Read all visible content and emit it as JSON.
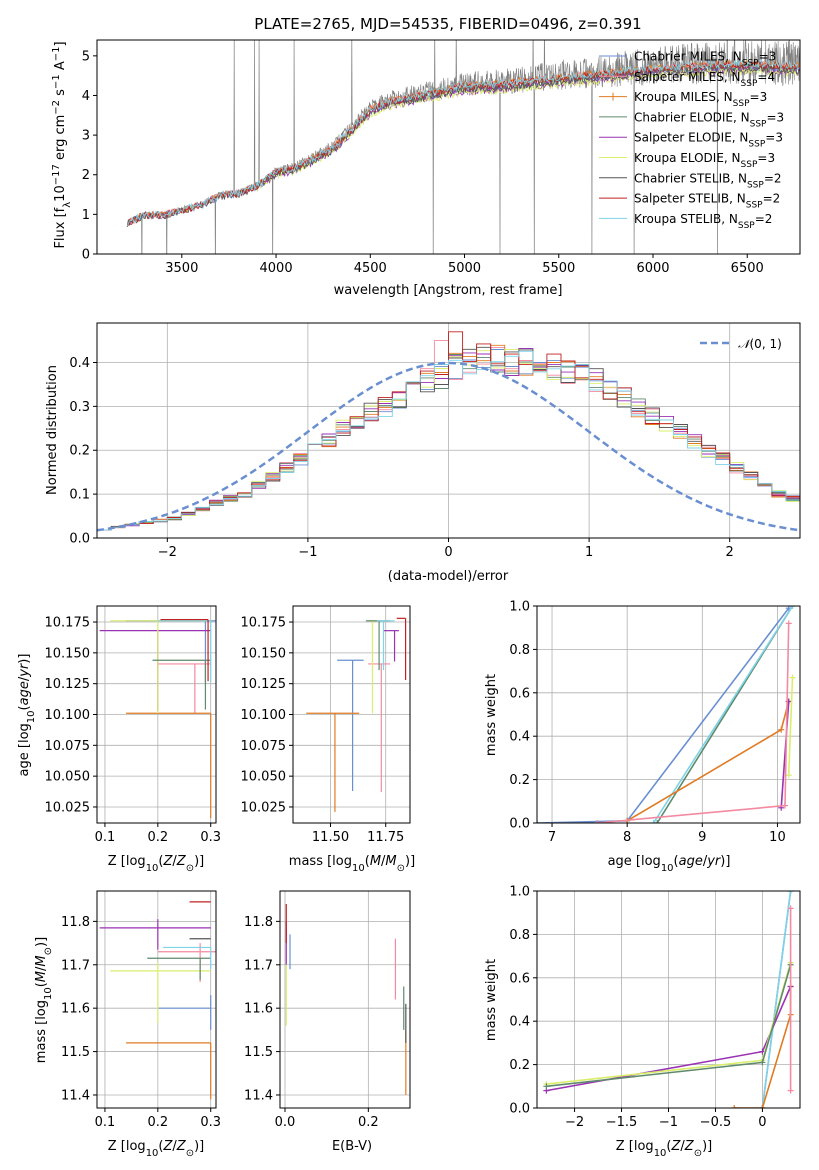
{
  "chart_data": [
    {
      "type": "line",
      "title": "PLATE=2765, MJD=54535, FIBERID=0496, z=0.391",
      "xlabel": "wavelength [Angstrom, rest frame]",
      "ylabel_parts": {
        "pre": "Flux [f",
        "sub": "λ",
        "mid": "10",
        "sup1": "−17",
        "mid2": " erg cm",
        "sup2": "−2",
        "mid3": " s",
        "sup3": "−1",
        "mid4": " A",
        "sup4": "−1",
        "post": "]"
      },
      "xlim": [
        3050,
        6780
      ],
      "ylim": [
        0,
        5.4
      ],
      "xticks": [
        3500,
        4000,
        4500,
        5000,
        5500,
        6000,
        6500
      ],
      "yticks": [
        0,
        1,
        2,
        3,
        4,
        5
      ],
      "observed": {
        "color": "#808080",
        "points": [
          [
            3210,
            0.8
          ],
          [
            3300,
            1.0
          ],
          [
            3400,
            1.0
          ],
          [
            3480,
            1.1
          ],
          [
            3600,
            1.25
          ],
          [
            3700,
            1.5
          ],
          [
            3800,
            1.55
          ],
          [
            3900,
            1.75
          ],
          [
            4000,
            2.1
          ],
          [
            4100,
            2.2
          ],
          [
            4200,
            2.45
          ],
          [
            4300,
            2.7
          ],
          [
            4400,
            3.2
          ],
          [
            4500,
            3.7
          ],
          [
            4600,
            3.9
          ],
          [
            4700,
            4.0
          ],
          [
            4800,
            4.1
          ],
          [
            4900,
            4.2
          ],
          [
            5000,
            4.3
          ],
          [
            5200,
            4.35
          ],
          [
            5400,
            4.45
          ],
          [
            5600,
            4.55
          ],
          [
            5800,
            4.65
          ],
          [
            6000,
            4.75
          ],
          [
            6200,
            4.8
          ],
          [
            6400,
            4.85
          ],
          [
            6600,
            4.85
          ],
          [
            6780,
            4.8
          ]
        ]
      },
      "series": [
        {
          "name": "Chabrier MILES",
          "nssp": "=3",
          "color": "#6a8fd1",
          "start": 3210
        },
        {
          "name": "Salpeter MILES",
          "nssp": "=4",
          "color": "#f48aa1",
          "start": 3210
        },
        {
          "name": "Kroupa MILES",
          "nssp": "=3",
          "color": "#e07b23",
          "start": 3210
        },
        {
          "name": "Chabrier ELODIE",
          "nssp": "=3",
          "color": "#5f8a6e",
          "start": 3900
        },
        {
          "name": "Salpeter ELODIE",
          "nssp": "=3",
          "color": "#9a32b4",
          "start": 3900
        },
        {
          "name": "Kroupa ELODIE",
          "nssp": "=3",
          "color": "#d9ee6b",
          "start": 3900
        },
        {
          "name": "Chabrier STELIB",
          "nssp": "=2",
          "color": "#555555",
          "start": 3210
        },
        {
          "name": "Salpeter STELIB",
          "nssp": "=2",
          "color": "#c0201f",
          "start": 3210
        },
        {
          "name": "Kroupa STELIB",
          "nssp": "=2",
          "color": "#7fd3e8",
          "start": 3210
        }
      ],
      "legend": "top-right"
    },
    {
      "type": "bar",
      "xlabel": "(data-model)/error",
      "ylabel": "Normed distribution",
      "xlim": [
        -2.5,
        2.5
      ],
      "ylim": [
        0,
        0.49
      ],
      "xticks": [
        -2,
        -1,
        0,
        1,
        2
      ],
      "yticks": [
        0.0,
        0.1,
        0.2,
        0.3,
        0.4
      ],
      "reference": {
        "name": "N(0,1)",
        "color": "#6a8fd1"
      },
      "legend": "top-right",
      "bin_width": 0.1,
      "bin_start": -2.5,
      "histogram_profile": [
        0.02,
        0.025,
        0.03,
        0.035,
        0.04,
        0.045,
        0.055,
        0.065,
        0.08,
        0.09,
        0.1,
        0.12,
        0.14,
        0.16,
        0.18,
        0.2,
        0.22,
        0.25,
        0.27,
        0.29,
        0.3,
        0.32,
        0.34,
        0.36,
        0.37,
        0.39,
        0.4,
        0.41,
        0.41,
        0.4,
        0.4,
        0.39,
        0.39,
        0.38,
        0.37,
        0.36,
        0.34,
        0.32,
        0.3,
        0.28,
        0.26,
        0.24,
        0.22,
        0.2,
        0.18,
        0.16,
        0.14,
        0.12,
        0.1,
        0.09
      ]
    },
    {
      "type": "scatter",
      "xlabel": "Z [log10(Z/Z⊙)]",
      "ylabel": "age  [log10(age/yr)]",
      "xlim": [
        0.085,
        0.31
      ],
      "ylim": [
        10.012,
        10.188
      ],
      "xticks": [
        0.1,
        0.2,
        0.3
      ],
      "yticks": [
        10.025,
        10.05,
        10.075,
        10.1,
        10.125,
        10.15,
        10.175
      ],
      "errorbars": [
        {
          "x": 0.29,
          "y": 10.176,
          "xerr": [
            0.15,
            0.02
          ],
          "yerr": [
            0.05,
            0.0
          ],
          "color": "#6a8fd1"
        },
        {
          "x": 0.27,
          "y": 10.141,
          "xerr": [
            0.07,
            0.03
          ],
          "yerr": [
            0.04,
            0.0
          ],
          "color": "#f48aa1"
        },
        {
          "x": 0.3,
          "y": 10.101,
          "xerr": [
            0.16,
            0.0
          ],
          "yerr": [
            0.085,
            0.0
          ],
          "color": "#e07b23"
        },
        {
          "x": 0.2,
          "y": 10.168,
          "xerr": [
            0.11,
            0.1
          ],
          "yerr": [
            0.065,
            0.0
          ],
          "color": "#9a32b4"
        },
        {
          "x": 0.2,
          "y": 10.176,
          "xerr": [
            0.09,
            0.1
          ],
          "yerr": [
            0.075,
            0.0
          ],
          "color": "#d9ee6b"
        },
        {
          "x": 0.29,
          "y": 10.144,
          "xerr": [
            0.1,
            0.01
          ],
          "yerr": [
            0.04,
            0.0
          ],
          "color": "#5f8a6e"
        },
        {
          "x": 0.3,
          "y": 10.176,
          "xerr": [
            0.1,
            0.0
          ],
          "yerr": [
            0.05,
            0.0
          ],
          "color": "#7fd3e8"
        },
        {
          "x": 0.295,
          "y": 10.177,
          "xerr": [
            0.09,
            0.0
          ],
          "yerr": [
            0.05,
            0.0
          ],
          "color": "#c0201f"
        }
      ]
    },
    {
      "type": "scatter",
      "xlabel": "mass [log10(M/M⊙)]",
      "xlim": [
        11.33,
        11.86
      ],
      "ylim": [
        10.012,
        10.188
      ],
      "xticks": [
        11.5,
        11.75
      ],
      "yticks": [
        10.025,
        10.05,
        10.075,
        10.1,
        10.125,
        10.15,
        10.175
      ],
      "errorbars": [
        {
          "x": 11.6,
          "y": 10.144,
          "xerr": [
            0.07,
            0.05
          ],
          "yerr": [
            0.106,
            0.0
          ],
          "color": "#6a8fd1"
        },
        {
          "x": 11.73,
          "y": 10.141,
          "xerr": [
            0.06,
            0.04
          ],
          "yerr": [
            0.104,
            0.0
          ],
          "color": "#f48aa1"
        },
        {
          "x": 11.52,
          "y": 10.101,
          "xerr": [
            0.13,
            0.11
          ],
          "yerr": [
            0.08,
            0.0
          ],
          "color": "#e07b23"
        },
        {
          "x": 11.79,
          "y": 10.168,
          "xerr": [
            0.05,
            0.02
          ],
          "yerr": [
            0.025,
            0.0
          ],
          "color": "#9a32b4"
        },
        {
          "x": 11.69,
          "y": 10.176,
          "xerr": [
            0.02,
            0.02
          ],
          "yerr": [
            0.075,
            0.0
          ],
          "color": "#d9ee6b"
        },
        {
          "x": 11.72,
          "y": 10.176,
          "xerr": [
            0.06,
            0.05
          ],
          "yerr": [
            0.04,
            0.0
          ],
          "color": "#5f8a6e"
        },
        {
          "x": 11.74,
          "y": 10.176,
          "xerr": [
            0.03,
            0.05
          ],
          "yerr": [
            0.04,
            0.0
          ],
          "color": "#7fd3e8"
        },
        {
          "x": 11.84,
          "y": 10.178,
          "xerr": [
            0.04,
            0.0
          ],
          "yerr": [
            0.05,
            0.0
          ],
          "color": "#c0201f"
        }
      ]
    },
    {
      "type": "line",
      "xlabel": "age  [log10(age/yr)]",
      "ylabel": "mass weight",
      "xlim": [
        6.8,
        10.3
      ],
      "ylim": [
        0,
        1.0
      ],
      "xticks": [
        7,
        8,
        9,
        10
      ],
      "yticks": [
        0.0,
        0.2,
        0.4,
        0.6,
        0.8,
        1.0
      ],
      "series": [
        {
          "color": "#6a8fd1",
          "points": [
            [
              6.8,
              0.0
            ],
            [
              8.0,
              0.01
            ],
            [
              10.15,
              0.99
            ]
          ]
        },
        {
          "color": "#5f8a6e",
          "points": [
            [
              8.4,
              0.0
            ],
            [
              10.2,
              1.0
            ]
          ]
        },
        {
          "color": "#7fd3e8",
          "points": [
            [
              8.35,
              0.0
            ],
            [
              10.2,
              1.0
            ]
          ]
        },
        {
          "color": "#e07b23",
          "points": [
            [
              8.0,
              0.01
            ],
            [
              10.05,
              0.43
            ],
            [
              10.15,
              0.56
            ]
          ]
        },
        {
          "color": "#9a32b4",
          "points": [
            [
              10.05,
              0.07
            ],
            [
              10.15,
              0.56
            ]
          ]
        },
        {
          "color": "#d9ee6b",
          "points": [
            [
              10.15,
              0.22
            ],
            [
              10.2,
              0.67
            ]
          ]
        },
        {
          "color": "#f48aa1",
          "points": [
            [
              7.6,
              0.0
            ],
            [
              10.1,
              0.08
            ],
            [
              10.15,
              0.92
            ]
          ]
        }
      ]
    },
    {
      "type": "scatter",
      "xlabel": "Z [log10(Z/Z⊙)]",
      "ylabel": "mass  [log10(M/M⊙)]",
      "xlim": [
        0.085,
        0.31
      ],
      "ylim": [
        11.37,
        11.87
      ],
      "xticks": [
        0.1,
        0.2,
        0.3
      ],
      "yticks": [
        11.4,
        11.5,
        11.6,
        11.7,
        11.8
      ],
      "errorbars": [
        {
          "x": 0.3,
          "y": 11.6,
          "xerr": [
            0.1,
            0.0
          ],
          "yerr": [
            0.05,
            0.03
          ],
          "color": "#6a8fd1"
        },
        {
          "x": 0.28,
          "y": 11.73,
          "xerr": [
            0.08,
            0.03
          ],
          "yerr": [
            0.07,
            0.02
          ],
          "color": "#f48aa1"
        },
        {
          "x": 0.3,
          "y": 11.52,
          "xerr": [
            0.16,
            0.0
          ],
          "yerr": [
            0.13,
            0.0
          ],
          "color": "#e07b23"
        },
        {
          "x": 0.2,
          "y": 11.785,
          "xerr": [
            0.11,
            0.1
          ],
          "yerr": [
            0.05,
            0.02
          ],
          "color": "#9a32b4"
        },
        {
          "x": 0.2,
          "y": 11.686,
          "xerr": [
            0.09,
            0.1
          ],
          "yerr": [
            0.12,
            0.02
          ],
          "color": "#d9ee6b"
        },
        {
          "x": 0.28,
          "y": 11.715,
          "xerr": [
            0.1,
            0.02
          ],
          "yerr": [
            0.05,
            0.0
          ],
          "color": "#5f8a6e"
        },
        {
          "x": 0.3,
          "y": 11.74,
          "xerr": [
            0.09,
            0.0
          ],
          "yerr": [
            0.05,
            0.0
          ],
          "color": "#7fd3e8"
        },
        {
          "x": 0.3,
          "y": 11.845,
          "xerr": [
            0.04,
            0.0
          ],
          "yerr": [
            0.0,
            0.0
          ],
          "color": "#c0201f"
        },
        {
          "x": 0.28,
          "y": 11.76,
          "xerr": [
            0.02,
            0.02
          ],
          "yerr": [
            0.0,
            0.0
          ],
          "color": "#555555"
        }
      ]
    },
    {
      "type": "scatter",
      "xlabel": "E(B-V)",
      "xlim": [
        -0.012,
        0.3
      ],
      "ylim": [
        11.37,
        11.87
      ],
      "xticks": [
        0.0,
        0.2
      ],
      "yticks": [
        11.4,
        11.5,
        11.6,
        11.7,
        11.8
      ],
      "errorbars": [
        {
          "x": 0.012,
          "y": 11.72,
          "xerr": [
            0,
            0
          ],
          "yerr": [
            0.03,
            0.05
          ],
          "color": "#6a8fd1"
        },
        {
          "x": 0.265,
          "y": 11.7,
          "xerr": [
            0,
            0
          ],
          "yerr": [
            0.08,
            0.06
          ],
          "color": "#f48aa1"
        },
        {
          "x": 0.29,
          "y": 11.5,
          "xerr": [
            0,
            0
          ],
          "yerr": [
            0.1,
            0.05
          ],
          "color": "#e07b23"
        },
        {
          "x": 0.003,
          "y": 11.75,
          "xerr": [
            0,
            0
          ],
          "yerr": [
            0.05,
            0.05
          ],
          "color": "#9a32b4"
        },
        {
          "x": 0.003,
          "y": 11.62,
          "xerr": [
            0,
            0
          ],
          "yerr": [
            0.06,
            0.08
          ],
          "color": "#d9ee6b"
        },
        {
          "x": 0.285,
          "y": 11.6,
          "xerr": [
            0,
            0
          ],
          "yerr": [
            0.05,
            0.05
          ],
          "color": "#5f8a6e"
        },
        {
          "x": 0.003,
          "y": 11.8,
          "xerr": [
            0,
            0
          ],
          "yerr": [
            0.05,
            0.04
          ],
          "color": "#c0201f"
        },
        {
          "x": 0.29,
          "y": 11.58,
          "xerr": [
            0,
            0
          ],
          "yerr": [
            0.06,
            0.03
          ],
          "color": "#555555"
        }
      ]
    },
    {
      "type": "line",
      "xlabel": "Z [log10(Z/Z⊙)]",
      "ylabel": "mass weight",
      "xlim": [
        -2.4,
        0.4
      ],
      "ylim": [
        0,
        1.0
      ],
      "xticks": [
        -2.0,
        -1.5,
        -1.0,
        -0.5,
        0.0
      ],
      "yticks": [
        0.0,
        0.2,
        0.4,
        0.6,
        0.8,
        1.0
      ],
      "series": [
        {
          "color": "#6a8fd1",
          "points": [
            [
              0.0,
              0.0
            ],
            [
              0.3,
              1.0
            ]
          ]
        },
        {
          "color": "#7fd3e8",
          "points": [
            [
              0.0,
              0.0
            ],
            [
              0.3,
              1.0
            ]
          ]
        },
        {
          "color": "#e07b23",
          "points": [
            [
              -0.3,
              0.0
            ],
            [
              0.0,
              0.0
            ],
            [
              0.3,
              0.43
            ],
            [
              0.3,
              0.56
            ]
          ]
        },
        {
          "color": "#9a32b4",
          "points": [
            [
              -2.3,
              0.08
            ],
            [
              0.0,
              0.26
            ],
            [
              0.3,
              0.56
            ]
          ]
        },
        {
          "color": "#d9ee6b",
          "points": [
            [
              -2.3,
              0.11
            ],
            [
              0.0,
              0.22
            ],
            [
              0.3,
              0.67
            ]
          ]
        },
        {
          "color": "#5f8a6e",
          "points": [
            [
              -2.3,
              0.1
            ],
            [
              0.0,
              0.21
            ],
            [
              0.3,
              0.66
            ]
          ]
        },
        {
          "color": "#f48aa1",
          "points": [
            [
              0.3,
              0.08
            ],
            [
              0.3,
              0.92
            ]
          ]
        }
      ]
    }
  ]
}
